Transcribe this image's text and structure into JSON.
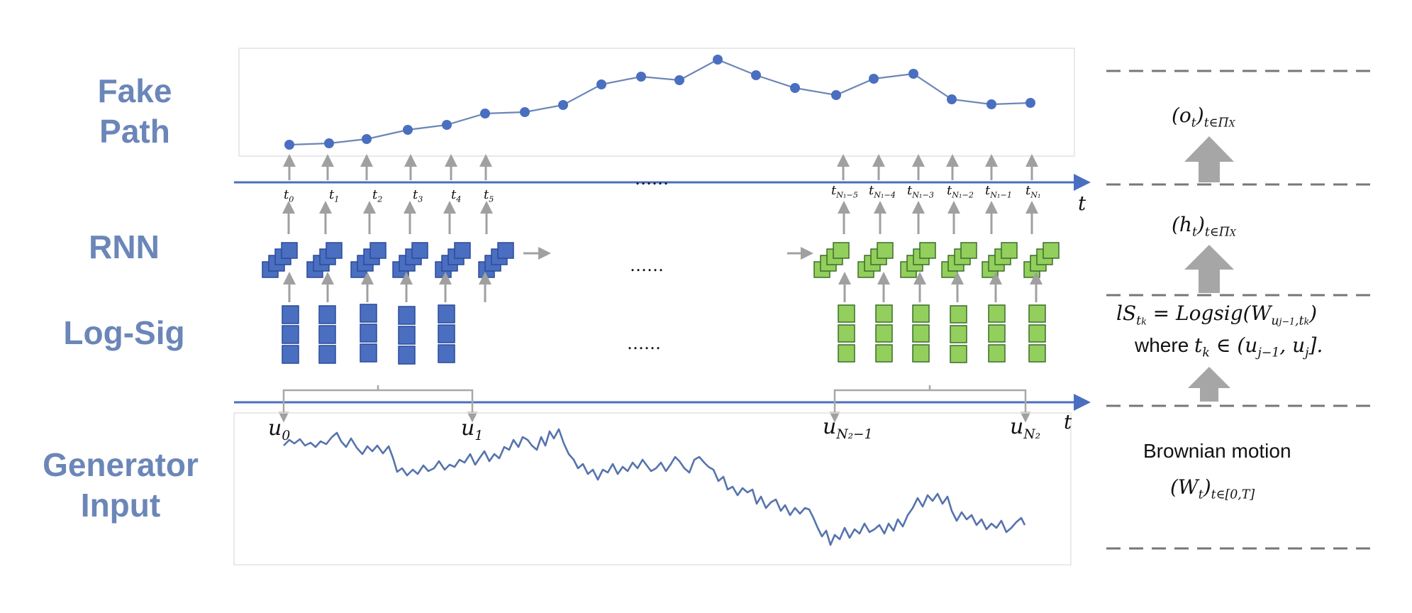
{
  "rows": {
    "fake_path": [
      "Fake",
      "Path"
    ],
    "rnn": "RNN",
    "logsig": "Log-Sig",
    "generator": [
      "Generator",
      "Input"
    ]
  },
  "time_axis": {
    "t_symbol": "t",
    "ellipsis": "……",
    "left_ticks": [
      "t",
      "t",
      "t",
      "t",
      "t",
      "t"
    ],
    "left_subs": [
      "0",
      "1",
      "2",
      "3",
      "4",
      "5"
    ],
    "right_subs": [
      "N₁−5",
      "N₁−4",
      "N₁−3",
      "N₁−2",
      "N₁−1",
      "N₁"
    ]
  },
  "u_labels": {
    "u0": "0",
    "u1": "1",
    "uN2m1": "N₂−1",
    "uN2": "N₂",
    "base": "u"
  },
  "right_panel": {
    "output": {
      "base": "(o",
      "sub1": "t",
      "close": ")",
      "sub2": "t∈Π"
    },
    "hidden": {
      "base": "(h",
      "sub1": "t",
      "close": ")",
      "sub2": "t∈Π"
    },
    "logsig_formula": "lS",
    "logsig_sub": "t",
    "logsig_rhs": " = Logsig(W",
    "logsig_w_sub": "u",
    "logsig_tail": ")",
    "where_line": "where",
    "where_math": "t",
    "where_rest": " ∈ (u",
    "where_end": "].",
    "brownian": "Brownian motion",
    "brownian_math": "(W",
    "brownian_sub": "t∈[0,T]"
  },
  "colors": {
    "label": "#6b86b8",
    "blue_box": "#4a6fc0",
    "green_box": "#92cf5c",
    "axis": "#4a6fc0",
    "arrow": "#a0a0a0",
    "dash": "#777777"
  }
}
